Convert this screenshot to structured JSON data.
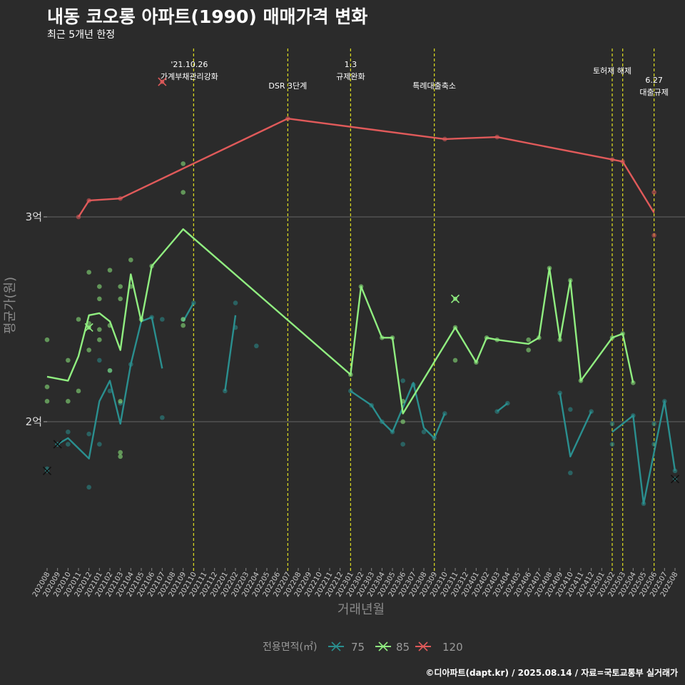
{
  "title": "내동 코오롱 아파트(1990) 매매가격 변화",
  "subtitle": "최근 5개년 한정",
  "caption": "©디아파트(dapt.kr) / 2025.08.14 / 자료=국토교통부 실거래가",
  "colors": {
    "background": "#2b2b2b",
    "grid": "#5a5a5a",
    "event_line": "#e0e020",
    "s75": "#2a8f8f",
    "s85": "#90ee80",
    "s120": "#e05a5a"
  },
  "chart_data": {
    "type": "line",
    "xlabel": "거래년월",
    "ylabel": "평균가(원)",
    "ylim": [
      16000,
      34800
    ],
    "y_ticks": [
      {
        "value": 20000,
        "label": "2억"
      },
      {
        "value": 30000,
        "label": "3억"
      }
    ],
    "grid": true,
    "legend_position": "bottom",
    "legend_title": "전용면적(㎡)",
    "categories": [
      "202008",
      "202009",
      "202010",
      "202011",
      "202012",
      "202101",
      "202102",
      "202103",
      "202104",
      "202105",
      "202106",
      "202107",
      "202108",
      "202109",
      "202110",
      "202111",
      "202112",
      "202201",
      "202202",
      "202203",
      "202204",
      "202205",
      "202206",
      "202207",
      "202208",
      "202209",
      "202210",
      "202211",
      "202212",
      "202301",
      "202302",
      "202303",
      "202304",
      "202305",
      "202306",
      "202307",
      "202308",
      "202309",
      "202310",
      "202311",
      "202312",
      "202401",
      "202402",
      "202403",
      "202404",
      "202405",
      "202406",
      "202407",
      "202408",
      "202409",
      "202410",
      "202411",
      "202412",
      "202501",
      "202502",
      "202503",
      "202504",
      "202505",
      "202506",
      "202507",
      "202508"
    ],
    "series": [
      {
        "name": "75",
        "color": "#2a8f8f",
        "segments": [
          [
            [
              "202009",
              18900
            ],
            [
              "202010",
              19200
            ],
            [
              "202012",
              18200
            ],
            [
              "202101",
              21000
            ],
            [
              "202102",
              22000
            ],
            [
              "202103",
              19900
            ],
            [
              "202104",
              22800
            ],
            [
              "202105",
              24900
            ],
            [
              "202106",
              25100
            ],
            [
              "202107",
              22600
            ]
          ],
          [
            [
              "202109",
              24900
            ],
            [
              "202110",
              25800
            ]
          ],
          [
            [
              "202201",
              21500
            ],
            [
              "202202",
              25200
            ]
          ],
          [
            [
              "202301",
              21500
            ],
            [
              "202303",
              20800
            ],
            [
              "202304",
              20000
            ],
            [
              "202305",
              19500
            ],
            [
              "202306",
              20700
            ],
            [
              "202307",
              21900
            ],
            [
              "202308",
              19700
            ],
            [
              "202309",
              19200
            ],
            [
              "202310",
              20400
            ]
          ],
          [
            [
              "202403",
              20500
            ],
            [
              "202404",
              20900
            ]
          ],
          [
            [
              "202409",
              21400
            ],
            [
              "202410",
              18300
            ],
            [
              "202412",
              20500
            ]
          ],
          [
            [
              "202502",
              19500
            ],
            [
              "202504",
              20300
            ],
            [
              "202505",
              16000
            ],
            [
              "202507",
              21000
            ],
            [
              "202508",
              17600
            ]
          ]
        ],
        "points": [
          [
            "202008",
            17700
          ],
          [
            "202009",
            18900
          ],
          [
            "202010",
            18900
          ],
          [
            "202010",
            19500
          ],
          [
            "202012",
            16800
          ],
          [
            "202012",
            19400
          ],
          [
            "202101",
            18900
          ],
          [
            "202101",
            23000
          ],
          [
            "202102",
            22500
          ],
          [
            "202102",
            21500
          ],
          [
            "202103",
            20900
          ],
          [
            "202104",
            22800
          ],
          [
            "202106",
            25100
          ],
          [
            "202107",
            20200
          ],
          [
            "202107",
            25000
          ],
          [
            "202109",
            25000
          ],
          [
            "202110",
            25800
          ],
          [
            "202201",
            21500
          ],
          [
            "202202",
            24600
          ],
          [
            "202202",
            25800
          ],
          [
            "202204",
            23700
          ],
          [
            "202301",
            21500
          ],
          [
            "202303",
            20800
          ],
          [
            "202304",
            20000
          ],
          [
            "202305",
            19500
          ],
          [
            "202306",
            22000
          ],
          [
            "202306",
            18900
          ],
          [
            "202307",
            21800
          ],
          [
            "202308",
            19500
          ],
          [
            "202309",
            19200
          ],
          [
            "202310",
            20400
          ],
          [
            "202403",
            20500
          ],
          [
            "202404",
            20900
          ],
          [
            "202409",
            21400
          ],
          [
            "202410",
            17500
          ],
          [
            "202410",
            20600
          ],
          [
            "202412",
            20500
          ],
          [
            "202502",
            18900
          ],
          [
            "202502",
            19900
          ],
          [
            "202504",
            20300
          ],
          [
            "202505",
            16000
          ],
          [
            "202506",
            19900
          ],
          [
            "202506",
            18900
          ],
          [
            "202507",
            21000
          ],
          [
            "202508",
            17600
          ]
        ],
        "x_markers": [
          [
            "202008",
            17600
          ],
          [
            "202009",
            18900
          ],
          [
            "202508",
            17200
          ]
        ]
      },
      {
        "name": "85",
        "color": "#90ee80",
        "segments": [
          [
            [
              "202008",
              22200
            ],
            [
              "202010",
              22000
            ],
            [
              "202011",
              23200
            ],
            [
              "202012",
              25200
            ],
            [
              "202101",
              25300
            ],
            [
              "202102",
              24900
            ],
            [
              "202103",
              23500
            ],
            [
              "202104",
              27200
            ],
            [
              "202105",
              24900
            ],
            [
              "202106",
              27600
            ],
            [
              "202109",
              29400
            ],
            [
              "202301",
              22300
            ],
            [
              "202302",
              26600
            ],
            [
              "202304",
              24100
            ],
            [
              "202305",
              24100
            ],
            [
              "202306",
              20400
            ],
            [
              "202311",
              24600
            ],
            [
              "202401",
              22900
            ],
            [
              "202402",
              24100
            ],
            [
              "202403",
              24000
            ],
            [
              "202406",
              23800
            ],
            [
              "202407",
              24100
            ],
            [
              "202408",
              27500
            ],
            [
              "202409",
              24000
            ],
            [
              "202410",
              26900
            ],
            [
              "202411",
              22000
            ],
            [
              "202502",
              24100
            ],
            [
              "202503",
              24300
            ],
            [
              "202504",
              21900
            ]
          ]
        ],
        "points": [
          [
            "202008",
            24000
          ],
          [
            "202008",
            21700
          ],
          [
            "202008",
            21000
          ],
          [
            "202010",
            23000
          ],
          [
            "202010",
            21000
          ],
          [
            "202011",
            25000
          ],
          [
            "202011",
            21500
          ],
          [
            "202012",
            23500
          ],
          [
            "202012",
            27300
          ],
          [
            "202012",
            24800
          ],
          [
            "202101",
            26000
          ],
          [
            "202101",
            24500
          ],
          [
            "202101",
            24000
          ],
          [
            "202101",
            26600
          ],
          [
            "202102",
            27400
          ],
          [
            "202102",
            22500
          ],
          [
            "202102",
            24700
          ],
          [
            "202103",
            26000
          ],
          [
            "202103",
            26600
          ],
          [
            "202103",
            21000
          ],
          [
            "202103",
            18300
          ],
          [
            "202103",
            18500
          ],
          [
            "202104",
            26600
          ],
          [
            "202104",
            27900
          ],
          [
            "202105",
            25000
          ],
          [
            "202106",
            27600
          ],
          [
            "202109",
            32600
          ],
          [
            "202109",
            31200
          ],
          [
            "202109",
            24700
          ],
          [
            "202109",
            25000
          ],
          [
            "202301",
            22300
          ],
          [
            "202302",
            26600
          ],
          [
            "202304",
            24100
          ],
          [
            "202305",
            24100
          ],
          [
            "202306",
            21000
          ],
          [
            "202306",
            20000
          ],
          [
            "202311",
            23000
          ],
          [
            "202311",
            24600
          ],
          [
            "202401",
            22900
          ],
          [
            "202402",
            24100
          ],
          [
            "202403",
            24000
          ],
          [
            "202406",
            24000
          ],
          [
            "202406",
            23500
          ],
          [
            "202407",
            24100
          ],
          [
            "202408",
            27500
          ],
          [
            "202409",
            24000
          ],
          [
            "202410",
            26900
          ],
          [
            "202411",
            22000
          ],
          [
            "202502",
            24100
          ],
          [
            "202503",
            24300
          ],
          [
            "202504",
            21900
          ]
        ],
        "x_markers": [
          [
            "202012",
            24600
          ],
          [
            "202311",
            26000
          ]
        ]
      },
      {
        "name": "120",
        "color": "#e05a5a",
        "segments": [
          [
            [
              "202011",
              30000
            ],
            [
              "202012",
              30800
            ],
            [
              "202103",
              30900
            ],
            [
              "202207",
              34800
            ],
            [
              "202310",
              33800
            ],
            [
              "202403",
              33900
            ],
            [
              "202502",
              32800
            ],
            [
              "202503",
              32700
            ],
            [
              "202506",
              30200
            ]
          ]
        ],
        "points": [
          [
            "202011",
            30000
          ],
          [
            "202012",
            30800
          ],
          [
            "202103",
            30900
          ],
          [
            "202207",
            34800
          ],
          [
            "202310",
            33800
          ],
          [
            "202403",
            33900
          ],
          [
            "202502",
            32800
          ],
          [
            "202503",
            32700
          ],
          [
            "202506",
            31200
          ],
          [
            "202506",
            29100
          ]
        ],
        "x_markers": [
          [
            "202107",
            36600
          ]
        ]
      }
    ],
    "events": [
      {
        "x": "202110",
        "lines": [
          "'21.10.26",
          "가계부채관리강화"
        ]
      },
      {
        "x": "202207",
        "lines": [
          "DSR 3단계"
        ]
      },
      {
        "x": "202301",
        "lines": [
          "1.3",
          "규제완화"
        ]
      },
      {
        "x": "202309",
        "lines": [
          "특례대출축소"
        ]
      },
      {
        "x": "202502",
        "lines": [
          "토허제 해제"
        ]
      },
      {
        "x": "202503",
        "lines": []
      },
      {
        "x": "202506",
        "lines": [
          "6.27",
          "대출규제"
        ]
      }
    ]
  }
}
